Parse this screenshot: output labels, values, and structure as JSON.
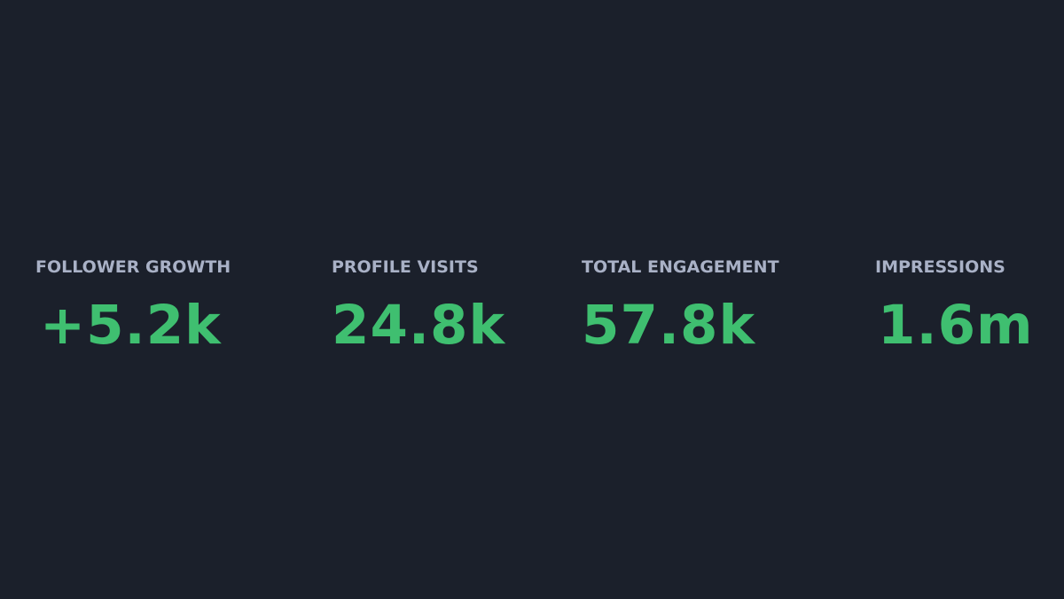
{
  "theme": {
    "background": "#1b202b",
    "label_color": "#a9b1c6",
    "value_color": "#3fbf70"
  },
  "stats": [
    {
      "label": "FOLLOWER GROWTH",
      "value": "+5.2k"
    },
    {
      "label": "PROFILE VISITS",
      "value": "24.8k"
    },
    {
      "label": "TOTAL ENGAGEMENT",
      "value": "57.8k"
    },
    {
      "label": "IMPRESSIONS",
      "value": "1.6m"
    }
  ]
}
